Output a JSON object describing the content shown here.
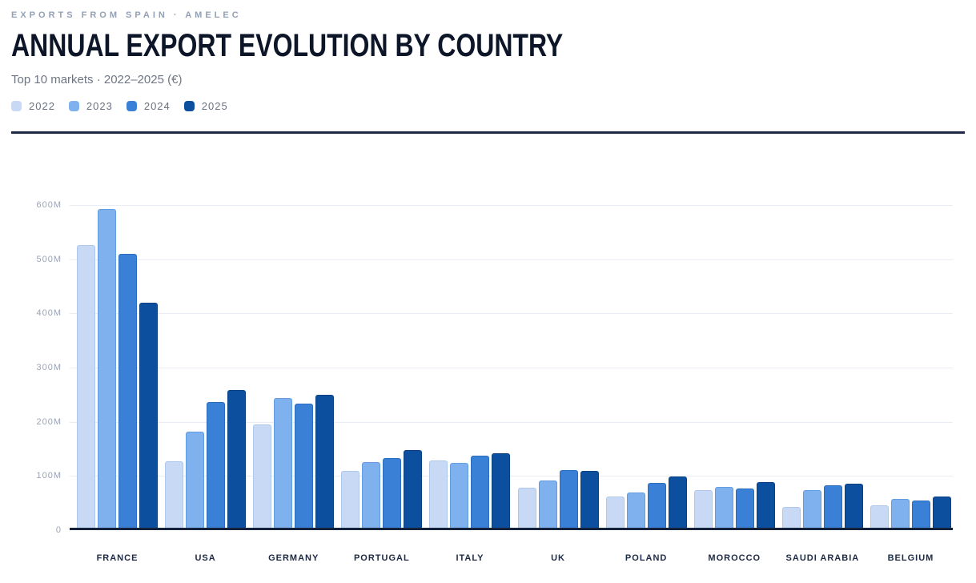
{
  "header": {
    "kicker": "EXPORTS FROM SPAIN · AMELEC",
    "title": "ANNUAL EXPORT EVOLUTION BY COUNTRY",
    "subtitle": "Top 10 markets · 2022–2025 (€)"
  },
  "chart_data": {
    "type": "bar",
    "title": "ANNUAL EXPORT EVOLUTION BY COUNTRY",
    "categories": [
      "FRANCE",
      "USA",
      "GERMANY",
      "PORTUGAL",
      "ITALY",
      "UK",
      "POLAND",
      "MOROCCO",
      "SAUDI ARABIA",
      "BELGIUM"
    ],
    "series": [
      {
        "name": "2022",
        "color": "#c7d9f4",
        "border_color": "#afc7ea",
        "values": [
          522,
          123,
          190,
          105,
          124,
          74,
          57,
          69,
          38,
          41
        ]
      },
      {
        "name": "2023",
        "color": "#7fb1ee",
        "border_color": "#639cdf",
        "values": [
          588,
          178,
          240,
          121,
          120,
          88,
          65,
          76,
          69,
          53
        ]
      },
      {
        "name": "2024",
        "color": "#3a80d6",
        "border_color": "#2a6dbe",
        "values": [
          505,
          232,
          229,
          129,
          133,
          106,
          83,
          73,
          78,
          50
        ]
      },
      {
        "name": "2025",
        "color": "#0c4f9e",
        "border_color": "#094183",
        "values": [
          415,
          255,
          246,
          144,
          138,
          105,
          94,
          85,
          81,
          57
        ]
      }
    ],
    "unit": "M",
    "currency": "€",
    "ylim": [
      0,
      600
    ],
    "yticks": [
      {
        "value": 0,
        "label": "0"
      },
      {
        "value": 100,
        "label": "100M"
      },
      {
        "value": 200,
        "label": "200M"
      },
      {
        "value": 300,
        "label": "300M"
      },
      {
        "value": 400,
        "label": "400M"
      },
      {
        "value": 500,
        "label": "500M"
      },
      {
        "value": 600,
        "label": "600M"
      }
    ],
    "grid": true,
    "legend_position": "top"
  }
}
